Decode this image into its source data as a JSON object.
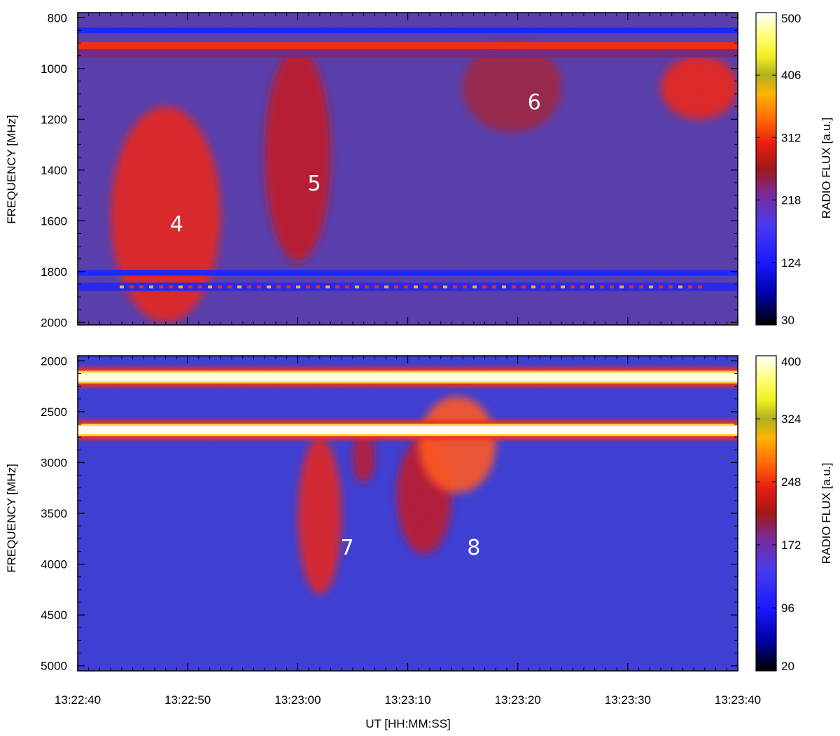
{
  "chart_data": [
    {
      "type": "heatmap",
      "name": "top-panel",
      "ylabel": "FREQUENCY [MHz]",
      "xlabel": "",
      "ylim": [
        780,
        2010
      ],
      "yticks": [
        "800",
        "1000",
        "1200",
        "1400",
        "1600",
        "1800",
        "2000"
      ],
      "yticks_values": [
        800,
        1000,
        1200,
        1400,
        1600,
        1800,
        2000
      ],
      "colorbar": {
        "label": "RADIO FLUX [a.u.]",
        "ticks": [
          "30",
          "124",
          "218",
          "312",
          "406",
          "500"
        ],
        "range": [
          30,
          500
        ]
      },
      "annotations": [
        {
          "text": "4",
          "t": 9,
          "f": 1610
        },
        {
          "text": "5",
          "t": 21.5,
          "f": 1450
        },
        {
          "text": "6",
          "t": 41.5,
          "f": 1130
        }
      ],
      "bands": [
        {
          "f": 850,
          "kind": "low"
        },
        {
          "f": 910,
          "kind": "high"
        },
        {
          "f": 1805,
          "kind": "low"
        },
        {
          "f": 1860,
          "kind": "mixed"
        }
      ],
      "emission": [
        {
          "t0": 3,
          "t1": 13,
          "f0": 1150,
          "f1": 2000,
          "level": 0.75
        },
        {
          "t0": 17,
          "t1": 23,
          "f0": 920,
          "f1": 1760,
          "level": 0.6
        },
        {
          "t0": 35,
          "t1": 44,
          "f0": 900,
          "f1": 1250,
          "level": 0.45
        },
        {
          "t0": 53,
          "t1": 60,
          "f0": 950,
          "f1": 1200,
          "level": 0.8
        }
      ]
    },
    {
      "type": "heatmap",
      "name": "bottom-panel",
      "ylabel": "FREQUENCY [MHz]",
      "xlabel": "UT [HH:MM:SS]",
      "ylim": [
        1950,
        5050
      ],
      "yticks": [
        "2000",
        "2500",
        "3000",
        "3500",
        "4000",
        "4500",
        "5000"
      ],
      "yticks_values": [
        2000,
        2500,
        3000,
        3500,
        4000,
        4500,
        5000
      ],
      "xticks": [
        "13:22:40",
        "13:22:50",
        "13:23:00",
        "13:23:10",
        "13:23:20",
        "13:23:30",
        "13:23:40"
      ],
      "xticks_values": [
        0,
        10,
        20,
        30,
        40,
        50,
        60
      ],
      "colorbar": {
        "label": "RADIO FLUX [a.u.]",
        "ticks": [
          "20",
          "96",
          "172",
          "248",
          "324",
          "400"
        ],
        "range": [
          20,
          400
        ]
      },
      "annotations": [
        {
          "text": "7",
          "t": 24.5,
          "f": 3830
        },
        {
          "text": "8",
          "t": 36,
          "f": 3830
        }
      ],
      "bands": [
        {
          "f": 2160,
          "kind": "saturated"
        },
        {
          "f": 2680,
          "kind": "saturated"
        }
      ],
      "emission": [
        {
          "t0": 20,
          "t1": 24,
          "f0": 2750,
          "f1": 4300,
          "level": 0.7
        },
        {
          "t0": 25,
          "t1": 27,
          "f0": 2700,
          "f1": 3200,
          "level": 0.55
        },
        {
          "t0": 29,
          "t1": 34,
          "f0": 2750,
          "f1": 3900,
          "level": 0.6
        },
        {
          "t0": 31,
          "t1": 38,
          "f0": 2350,
          "f1": 3300,
          "level": 0.85
        }
      ]
    }
  ]
}
